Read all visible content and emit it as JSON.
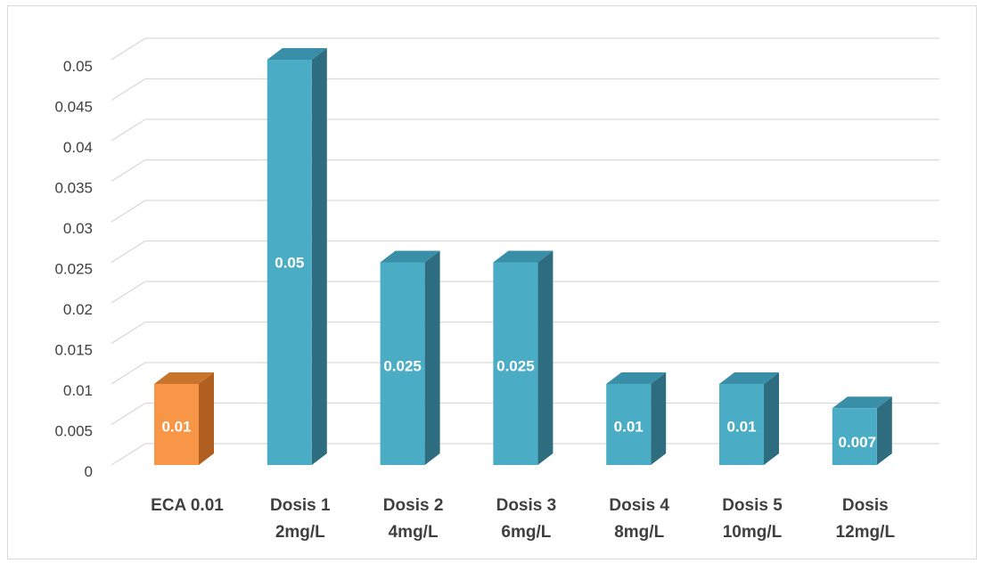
{
  "chart_data": {
    "type": "bar",
    "style": "3d-column",
    "categories": [
      [
        "ECA 0.01"
      ],
      [
        "Dosis 1",
        "2mg/L"
      ],
      [
        "Dosis 2",
        "4mg/L"
      ],
      [
        "Dosis 3",
        "6mg/L"
      ],
      [
        "Dosis 4",
        "8mg/L"
      ],
      [
        "Dosis 5",
        "10mg/L"
      ],
      [
        "Dosis",
        "12mg/L"
      ]
    ],
    "values": [
      0.01,
      0.05,
      0.025,
      0.025,
      0.01,
      0.01,
      0.007
    ],
    "data_labels": [
      "0.01",
      "0.05",
      "0.025",
      "0.025",
      "0.01",
      "0.01",
      "0.007"
    ],
    "y_ticks": [
      "0",
      "0.005",
      "0.01",
      "0.015",
      "0.02",
      "0.025",
      "0.03",
      "0.035",
      "0.04",
      "0.045",
      "0.05"
    ],
    "ylim": [
      0,
      0.05
    ],
    "grid": true,
    "legend": "none",
    "title": "",
    "xlabel": "",
    "ylabel": ""
  },
  "colors": {
    "highlight_front": "#F79646",
    "highlight_top": "#C9742D",
    "highlight_side": "#B05F21",
    "bar_front": "#4BACC6",
    "bar_top": "#3A8FA8",
    "bar_side": "#2E6D80",
    "grid": "#d9d9d9",
    "label": "#ffffff"
  }
}
